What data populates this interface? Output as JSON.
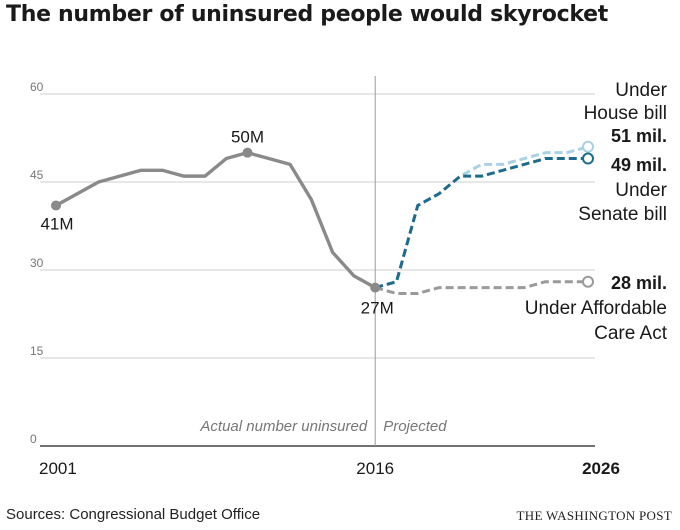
{
  "title": "The number of uninsured people would skyrocket",
  "source": "Sources: Congressional Budget Office",
  "brand": "THE WASHINGTON POST",
  "colors": {
    "actual": "#8a8a8a",
    "senate": "#1f6b8e",
    "house": "#a9d2e6",
    "aca": "#9a9a9a",
    "grid": "#cfcfcf",
    "text": "#1a1a1a",
    "muted": "#777777"
  },
  "chart_data": {
    "type": "line",
    "title": "The number of uninsured people would skyrocket",
    "ylim": [
      0,
      60
    ],
    "xlim": [
      2001,
      2026
    ],
    "y_ticks": [
      0,
      15,
      30,
      45,
      60
    ],
    "x_ticks": [
      "2001",
      "2016",
      "2026"
    ],
    "grid": true,
    "regions": {
      "actual": "Actual number uninsured",
      "projected": "Projected"
    },
    "series": [
      {
        "name": "Actual number uninsured",
        "style": "solid",
        "x": [
          2001,
          2002,
          2003,
          2004,
          2005,
          2006,
          2007,
          2008,
          2009,
          2010,
          2011,
          2012,
          2013,
          2014,
          2015,
          2016
        ],
        "values": [
          41,
          43,
          45,
          46,
          47,
          47,
          46,
          46,
          49,
          50,
          49,
          48,
          42,
          33,
          29,
          27
        ]
      },
      {
        "name": "Under House bill",
        "style": "dashed",
        "x": [
          2016,
          2017,
          2018,
          2019,
          2020,
          2021,
          2022,
          2023,
          2024,
          2025,
          2026
        ],
        "values": [
          27,
          28,
          41,
          43,
          46,
          48,
          48,
          49,
          50,
          50,
          51
        ]
      },
      {
        "name": "Under Senate bill",
        "style": "dashed",
        "x": [
          2016,
          2017,
          2018,
          2019,
          2020,
          2021,
          2022,
          2023,
          2024,
          2025,
          2026
        ],
        "values": [
          27,
          28,
          41,
          43,
          46,
          46,
          47,
          48,
          49,
          49,
          49
        ]
      },
      {
        "name": "Under Affordable Care Act",
        "style": "dashed",
        "x": [
          2016,
          2017,
          2018,
          2019,
          2020,
          2021,
          2022,
          2023,
          2024,
          2025,
          2026
        ],
        "values": [
          27,
          26,
          26,
          27,
          27,
          27,
          27,
          27,
          28,
          28,
          28
        ]
      }
    ],
    "annotations": {
      "start": "41M",
      "peak": "50M",
      "low": "27M",
      "house_label_1": "Under",
      "house_label_2": "House bill",
      "house_value": "51 mil.",
      "senate_value": "49 mil.",
      "senate_label_1": "Under",
      "senate_label_2": "Senate bill",
      "aca_value": "28 mil.",
      "aca_label_1": "Under Affordable",
      "aca_label_2": "Care Act"
    }
  }
}
